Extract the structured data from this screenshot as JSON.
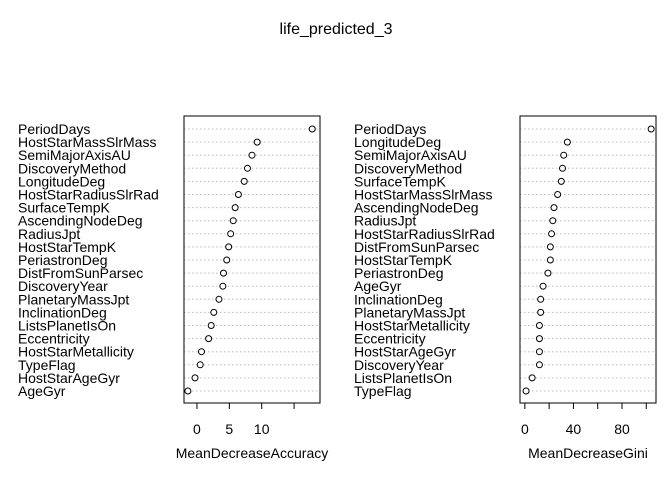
{
  "title": "life_predicted_3",
  "chart_data": [
    {
      "type": "scatter",
      "title": "",
      "xlabel": "MeanDecreaseAccuracy",
      "ylabel": "",
      "xlim": [
        -2,
        19
      ],
      "xticks": [
        0,
        5,
        10,
        15
      ],
      "xtick_labels": [
        "0",
        "5",
        "10",
        ""
      ],
      "grid": true,
      "categories": [
        "PeriodDays",
        "HostStarMassSlrMass",
        "SemiMajorAxisAU",
        "DiscoveryMethod",
        "LongitudeDeg",
        "HostStarRadiusSlrRad",
        "SurfaceTempK",
        "AscendingNodeDeg",
        "RadiusJpt",
        "HostStarTempK",
        "PeriastronDeg",
        "DistFromSunParsec",
        "DiscoveryYear",
        "PlanetaryMassJpt",
        "InclinationDeg",
        "ListsPlanetIsOn",
        "Eccentricity",
        "HostStarMetallicity",
        "TypeFlag",
        "HostStarAgeGyr",
        "AgeGyr"
      ],
      "values": [
        17.8,
        9.3,
        8.5,
        7.8,
        7.3,
        6.4,
        5.9,
        5.6,
        5.2,
        4.9,
        4.6,
        4.1,
        4.0,
        3.4,
        2.6,
        2.2,
        1.8,
        0.7,
        0.5,
        -0.3,
        -1.4
      ]
    },
    {
      "type": "scatter",
      "title": "",
      "xlabel": "MeanDecreaseGini",
      "ylabel": "",
      "xlim": [
        -4,
        108
      ],
      "xticks": [
        0,
        20,
        40,
        60,
        80,
        100
      ],
      "xtick_labels": [
        "0",
        "",
        "40",
        "",
        "80",
        ""
      ],
      "grid": true,
      "categories": [
        "PeriodDays",
        "LongitudeDeg",
        "SemiMajorAxisAU",
        "DiscoveryMethod",
        "SurfaceTempK",
        "HostStarMassSlrMass",
        "AscendingNodeDeg",
        "RadiusJpt",
        "HostStarRadiusSlrRad",
        "DistFromSunParsec",
        "HostStarTempK",
        "PeriastronDeg",
        "AgeGyr",
        "InclinationDeg",
        "PlanetaryMassJpt",
        "HostStarMetallicity",
        "Eccentricity",
        "HostStarAgeGyr",
        "DiscoveryYear",
        "ListsPlanetIsOn",
        "TypeFlag"
      ],
      "values": [
        104,
        35,
        32,
        31,
        30,
        27,
        24,
        23,
        22,
        21,
        21,
        19,
        15,
        13,
        13,
        12,
        12,
        12,
        12,
        6,
        1
      ]
    }
  ]
}
